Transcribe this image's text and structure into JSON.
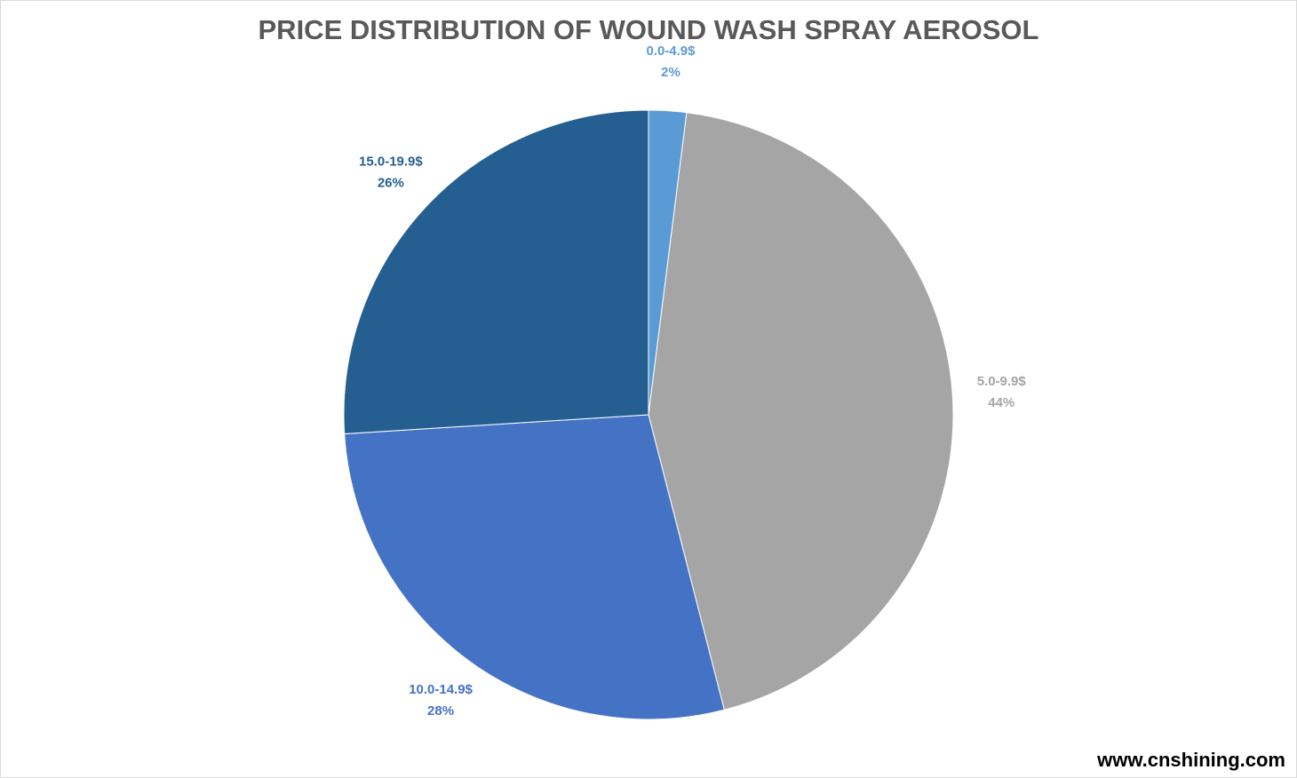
{
  "chart_data": {
    "type": "pie",
    "title": "PRICE DISTRIBUTION OF WOUND WASH SPRAY AEROSOL",
    "categories": [
      "0.0-4.9$",
      "5.0-9.9$",
      "10.0-14.9$",
      "15.0-19.9$"
    ],
    "values": [
      2,
      44,
      28,
      26
    ],
    "value_labels": [
      "2%",
      "44%",
      "28%",
      "26%"
    ],
    "colors": [
      "#5b9bd5",
      "#a5a5a5",
      "#4472c4",
      "#255e91"
    ],
    "watermark": "www.cnshining.com"
  }
}
